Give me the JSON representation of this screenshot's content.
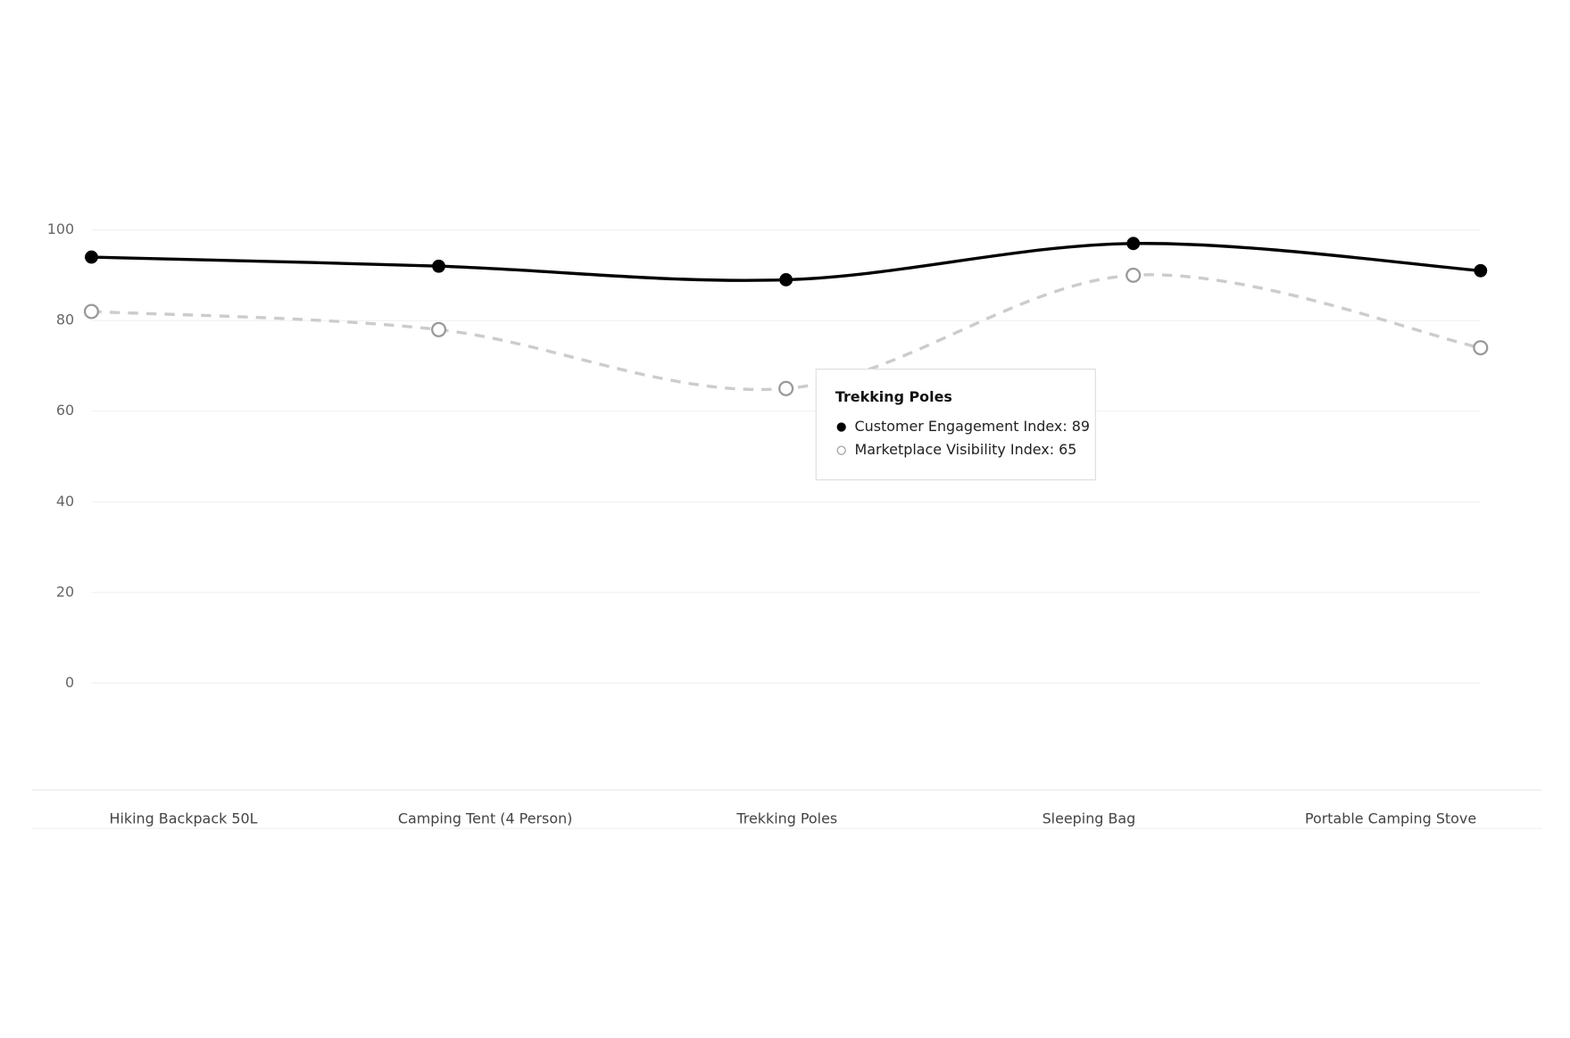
{
  "chart_data": {
    "type": "line",
    "categories": [
      "Hiking Backpack 50L",
      "Camping Tent (4 Person)",
      "Trekking Poles",
      "Sleeping Bag",
      "Portable Camping Stove"
    ],
    "series": [
      {
        "name": "Customer Engagement Index",
        "color": "#000000",
        "values": [
          94,
          92,
          89,
          97,
          91
        ]
      },
      {
        "name": "Marketplace Visibility Index",
        "color": "#cccccc",
        "values": [
          82,
          78,
          65,
          90,
          74
        ]
      }
    ],
    "ylim": [
      0,
      100
    ],
    "yticks": [
      0,
      20,
      40,
      60,
      80,
      100
    ],
    "grid": true,
    "tooltip": {
      "title": "Trekking Poles",
      "lines": [
        "Customer Engagement Index: 89",
        "Marketplace Visibility Index: 65"
      ]
    }
  }
}
